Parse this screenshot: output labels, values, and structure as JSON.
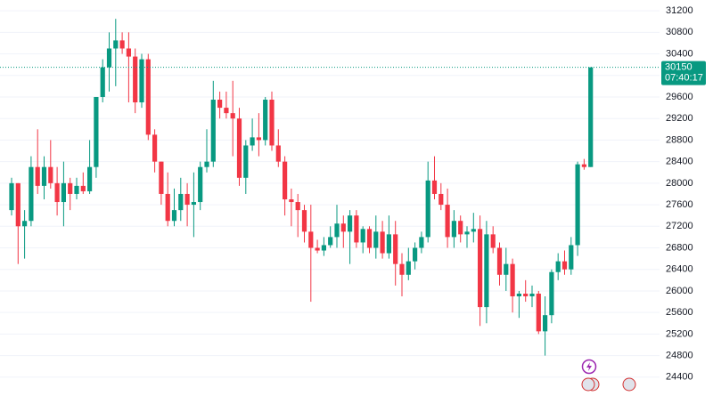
{
  "chart_data": {
    "type": "candlestick",
    "up_color": "#089981",
    "down_color": "#f23645",
    "ylim": [
      24050,
      31400
    ],
    "yticks": [
      24400,
      24800,
      25200,
      25600,
      26000,
      26400,
      26800,
      27200,
      27600,
      28000,
      28400,
      28800,
      29200,
      29600,
      30000,
      30400,
      30800,
      31200
    ],
    "grid": true,
    "last_price": 30150,
    "last_price_label": "30150",
    "countdown": "07:40:17",
    "candles": [
      [
        27500,
        28100,
        27400,
        28000
      ],
      [
        28000,
        28000,
        26500,
        27200
      ],
      [
        27200,
        27500,
        26600,
        27300
      ],
      [
        27300,
        28500,
        27200,
        28300
      ],
      [
        28300,
        29000,
        27800,
        27950
      ],
      [
        27950,
        28500,
        27700,
        28300
      ],
      [
        28300,
        28800,
        27900,
        28000
      ],
      [
        28000,
        28300,
        27400,
        27650
      ],
      [
        27650,
        28400,
        27200,
        28000
      ],
      [
        28000,
        28100,
        27500,
        27800
      ],
      [
        27800,
        28100,
        27700,
        27950
      ],
      [
        27950,
        28200,
        27800,
        27850
      ],
      [
        27850,
        28800,
        27800,
        28300
      ],
      [
        28300,
        29600,
        28100,
        29600
      ],
      [
        29600,
        30300,
        29500,
        30150
      ],
      [
        30150,
        30800,
        29700,
        30500
      ],
      [
        30500,
        31050,
        29800,
        30650
      ],
      [
        30650,
        30800,
        30400,
        30500
      ],
      [
        30500,
        30800,
        29500,
        30350
      ],
      [
        30350,
        30500,
        29300,
        29500
      ],
      [
        29500,
        30400,
        29400,
        30300
      ],
      [
        30300,
        30400,
        28800,
        28900
      ],
      [
        28900,
        29000,
        28200,
        28400
      ],
      [
        28400,
        28400,
        27600,
        27800
      ],
      [
        27800,
        28200,
        27200,
        27300
      ],
      [
        27300,
        27900,
        27200,
        27500
      ],
      [
        27500,
        28100,
        27300,
        27800
      ],
      [
        27800,
        28000,
        27200,
        27600
      ],
      [
        27600,
        28200,
        27000,
        27650
      ],
      [
        27650,
        28400,
        27500,
        28300
      ],
      [
        28300,
        29000,
        28200,
        28400
      ],
      [
        28400,
        29900,
        28300,
        29550
      ],
      [
        29550,
        29700,
        29200,
        29400
      ],
      [
        29400,
        29700,
        29200,
        29300
      ],
      [
        29300,
        29900,
        28500,
        29200
      ],
      [
        29200,
        29400,
        27950,
        28100
      ],
      [
        28100,
        28800,
        27800,
        28700
      ],
      [
        28700,
        29200,
        28600,
        28850
      ],
      [
        28850,
        29300,
        28500,
        28800
      ],
      [
        28800,
        29600,
        28700,
        29550
      ],
      [
        29550,
        29700,
        28600,
        28700
      ],
      [
        28700,
        29000,
        28300,
        28400
      ],
      [
        28400,
        28500,
        27400,
        27700
      ],
      [
        27700,
        27900,
        27200,
        27650
      ],
      [
        27650,
        27800,
        27000,
        27500
      ],
      [
        27500,
        27600,
        26900,
        27100
      ],
      [
        27100,
        27600,
        25800,
        26800
      ],
      [
        26800,
        26950,
        26700,
        26750
      ],
      [
        26750,
        27000,
        26650,
        26850
      ],
      [
        26850,
        27200,
        26800,
        27000
      ],
      [
        27000,
        27600,
        26800,
        27250
      ],
      [
        27250,
        27400,
        26800,
        27100
      ],
      [
        27100,
        27500,
        26500,
        27400
      ],
      [
        27400,
        27500,
        26800,
        26900
      ],
      [
        26900,
        27200,
        26700,
        27150
      ],
      [
        27150,
        27200,
        26700,
        26800
      ],
      [
        26800,
        27400,
        26600,
        27100
      ],
      [
        27100,
        27300,
        26600,
        26700
      ],
      [
        26700,
        27400,
        26600,
        27050
      ],
      [
        27050,
        27300,
        26100,
        26500
      ],
      [
        26500,
        26700,
        25900,
        26300
      ],
      [
        26300,
        26800,
        26200,
        26550
      ],
      [
        26550,
        26900,
        26400,
        26800
      ],
      [
        26800,
        27100,
        26700,
        27000
      ],
      [
        27000,
        28400,
        26900,
        28050
      ],
      [
        28050,
        28500,
        27700,
        27800
      ],
      [
        27800,
        28000,
        27500,
        27600
      ],
      [
        27600,
        27900,
        26800,
        27000
      ],
      [
        27000,
        27500,
        26800,
        27300
      ],
      [
        27300,
        27400,
        26900,
        27050
      ],
      [
        27050,
        27200,
        26800,
        27100
      ],
      [
        27100,
        27450,
        26900,
        27150
      ],
      [
        27150,
        27400,
        25350,
        25700
      ],
      [
        25700,
        27300,
        25400,
        27050
      ],
      [
        27050,
        27200,
        26700,
        26800
      ],
      [
        26800,
        26900,
        26100,
        26300
      ],
      [
        26300,
        26800,
        26000,
        26500
      ],
      [
        26500,
        26600,
        25600,
        25900
      ],
      [
        25900,
        26000,
        25500,
        25950
      ],
      [
        25950,
        26200,
        25800,
        25900
      ],
      [
        25900,
        26100,
        25700,
        25950
      ],
      [
        25950,
        26000,
        25200,
        25250
      ],
      [
        25250,
        25900,
        24800,
        25550
      ],
      [
        25550,
        26400,
        25400,
        26350
      ],
      [
        26350,
        26700,
        26200,
        26550
      ],
      [
        26550,
        26750,
        26300,
        26400
      ],
      [
        26400,
        27000,
        26300,
        26850
      ],
      [
        26850,
        28400,
        26650,
        28350
      ],
      [
        28350,
        28450,
        28250,
        28300
      ],
      [
        28300,
        30150,
        28300,
        30150
      ]
    ]
  }
}
